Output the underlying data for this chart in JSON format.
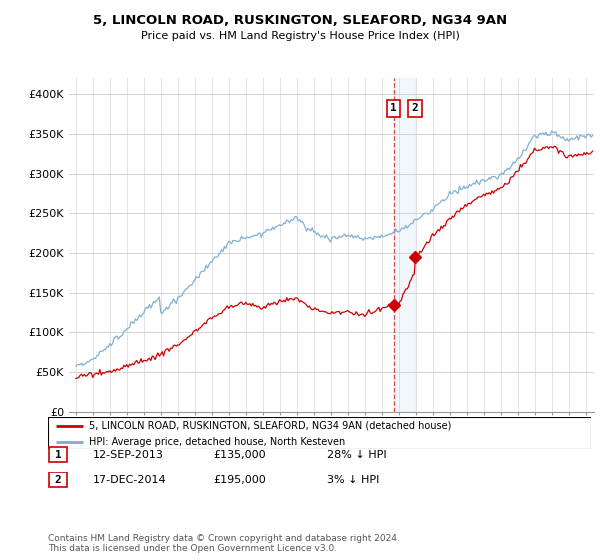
{
  "title": "5, LINCOLN ROAD, RUSKINGTON, SLEAFORD, NG34 9AN",
  "subtitle": "Price paid vs. HM Land Registry's House Price Index (HPI)",
  "ylim": [
    0,
    420000
  ],
  "yticks": [
    0,
    50000,
    100000,
    150000,
    200000,
    250000,
    300000,
    350000,
    400000
  ],
  "ytick_labels": [
    "£0",
    "£50K",
    "£100K",
    "£150K",
    "£200K",
    "£250K",
    "£300K",
    "£350K",
    "£400K"
  ],
  "legend_line1": "5, LINCOLN ROAD, RUSKINGTON, SLEAFORD, NG34 9AN (detached house)",
  "legend_line2": "HPI: Average price, detached house, North Kesteven",
  "transaction1_date": "12-SEP-2013",
  "transaction1_price": "£135,000",
  "transaction1_hpi": "28% ↓ HPI",
  "transaction2_date": "17-DEC-2014",
  "transaction2_price": "£195,000",
  "transaction2_hpi": "3% ↓ HPI",
  "footnote": "Contains HM Land Registry data © Crown copyright and database right 2024.\nThis data is licensed under the Open Government Licence v3.0.",
  "red_color": "#cc0000",
  "blue_color": "#7aadcf",
  "grid_color": "#cccccc",
  "transaction1_x": 2013.71,
  "transaction2_x": 2014.96,
  "xlim_left": 1994.6,
  "xlim_right": 2025.5
}
